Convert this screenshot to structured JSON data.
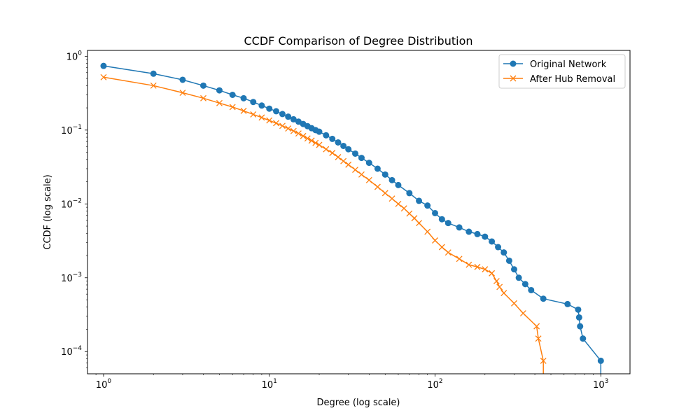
{
  "chart_data": {
    "type": "line",
    "title": "CCDF Comparison of Degree Distribution",
    "xlabel": "Degree (log scale)",
    "ylabel": "CCDF (log scale)",
    "xscale": "log",
    "yscale": "log",
    "xlim": [
      0.8,
      1500
    ],
    "ylim": [
      5e-05,
      1.2
    ],
    "xticks": [
      {
        "value": 1,
        "base": "10",
        "exp": "0"
      },
      {
        "value": 10,
        "base": "10",
        "exp": "1"
      },
      {
        "value": 100,
        "base": "10",
        "exp": "2"
      },
      {
        "value": 1000,
        "base": "10",
        "exp": "3"
      }
    ],
    "yticks": [
      {
        "value": 0.0001,
        "base": "10",
        "exp": "−4"
      },
      {
        "value": 0.001,
        "base": "10",
        "exp": "−3"
      },
      {
        "value": 0.01,
        "base": "10",
        "exp": "−2"
      },
      {
        "value": 0.1,
        "base": "10",
        "exp": "−1"
      },
      {
        "value": 1,
        "base": "10",
        "exp": "0"
      }
    ],
    "grid": false,
    "legend_position": "top-right",
    "series": [
      {
        "name": "Original Network",
        "color": "#1f77b4",
        "marker": "circle",
        "points": [
          [
            1,
            0.74
          ],
          [
            2,
            0.58
          ],
          [
            3,
            0.48
          ],
          [
            4,
            0.4
          ],
          [
            5,
            0.345
          ],
          [
            6,
            0.3
          ],
          [
            7,
            0.27
          ],
          [
            8,
            0.24
          ],
          [
            9,
            0.215
          ],
          [
            10,
            0.195
          ],
          [
            11,
            0.18
          ],
          [
            12,
            0.165
          ],
          [
            13,
            0.152
          ],
          [
            14,
            0.14
          ],
          [
            15,
            0.13
          ],
          [
            16,
            0.121
          ],
          [
            17,
            0.113
          ],
          [
            18,
            0.106
          ],
          [
            19,
            0.1
          ],
          [
            20,
            0.095
          ],
          [
            22,
            0.085
          ],
          [
            24,
            0.076
          ],
          [
            26,
            0.068
          ],
          [
            28,
            0.061
          ],
          [
            30,
            0.055
          ],
          [
            33,
            0.048
          ],
          [
            36,
            0.042
          ],
          [
            40,
            0.036
          ],
          [
            45,
            0.03
          ],
          [
            50,
            0.025
          ],
          [
            55,
            0.021
          ],
          [
            60,
            0.018
          ],
          [
            70,
            0.014
          ],
          [
            80,
            0.011
          ],
          [
            90,
            0.0095
          ],
          [
            100,
            0.0075
          ],
          [
            110,
            0.0062
          ],
          [
            120,
            0.0055
          ],
          [
            140,
            0.0048
          ],
          [
            160,
            0.0042
          ],
          [
            180,
            0.0039
          ],
          [
            200,
            0.0036
          ],
          [
            220,
            0.0031
          ],
          [
            240,
            0.0026
          ],
          [
            260,
            0.0022
          ],
          [
            280,
            0.0017
          ],
          [
            300,
            0.0013
          ],
          [
            320,
            0.001
          ],
          [
            350,
            0.00082
          ],
          [
            380,
            0.00068
          ],
          [
            450,
            0.00052
          ],
          [
            630,
            0.00044
          ],
          [
            730,
            0.00037
          ],
          [
            740,
            0.00029
          ],
          [
            750,
            0.00022
          ],
          [
            780,
            0.00015
          ],
          [
            1000,
            7.5e-05
          ],
          [
            1000,
            5e-05
          ]
        ]
      },
      {
        "name": "After Hub Removal",
        "color": "#ff7f0e",
        "marker": "x",
        "points": [
          [
            1,
            0.52
          ],
          [
            2,
            0.4
          ],
          [
            3,
            0.32
          ],
          [
            4,
            0.27
          ],
          [
            5,
            0.232
          ],
          [
            6,
            0.205
          ],
          [
            7,
            0.182
          ],
          [
            8,
            0.163
          ],
          [
            9,
            0.148
          ],
          [
            10,
            0.135
          ],
          [
            11,
            0.124
          ],
          [
            12,
            0.114
          ],
          [
            13,
            0.105
          ],
          [
            14,
            0.097
          ],
          [
            15,
            0.09
          ],
          [
            16,
            0.083
          ],
          [
            17,
            0.077
          ],
          [
            18,
            0.072
          ],
          [
            19,
            0.067
          ],
          [
            20,
            0.063
          ],
          [
            22,
            0.055
          ],
          [
            24,
            0.049
          ],
          [
            26,
            0.043
          ],
          [
            28,
            0.038
          ],
          [
            30,
            0.034
          ],
          [
            33,
            0.029
          ],
          [
            36,
            0.025
          ],
          [
            40,
            0.021
          ],
          [
            45,
            0.017
          ],
          [
            50,
            0.014
          ],
          [
            55,
            0.0118
          ],
          [
            60,
            0.01
          ],
          [
            65,
            0.0087
          ],
          [
            70,
            0.0074
          ],
          [
            75,
            0.0064
          ],
          [
            80,
            0.0055
          ],
          [
            90,
            0.0042
          ],
          [
            100,
            0.0032
          ],
          [
            110,
            0.0026
          ],
          [
            120,
            0.0022
          ],
          [
            140,
            0.0018
          ],
          [
            160,
            0.0015
          ],
          [
            180,
            0.0014
          ],
          [
            200,
            0.0013
          ],
          [
            220,
            0.00115
          ],
          [
            235,
            0.0009
          ],
          [
            245,
            0.00075
          ],
          [
            260,
            0.00062
          ],
          [
            300,
            0.00045
          ],
          [
            340,
            0.00033
          ],
          [
            410,
            0.00022
          ],
          [
            420,
            0.00015
          ],
          [
            450,
            7.5e-05
          ],
          [
            450,
            5e-05
          ]
        ]
      }
    ]
  }
}
